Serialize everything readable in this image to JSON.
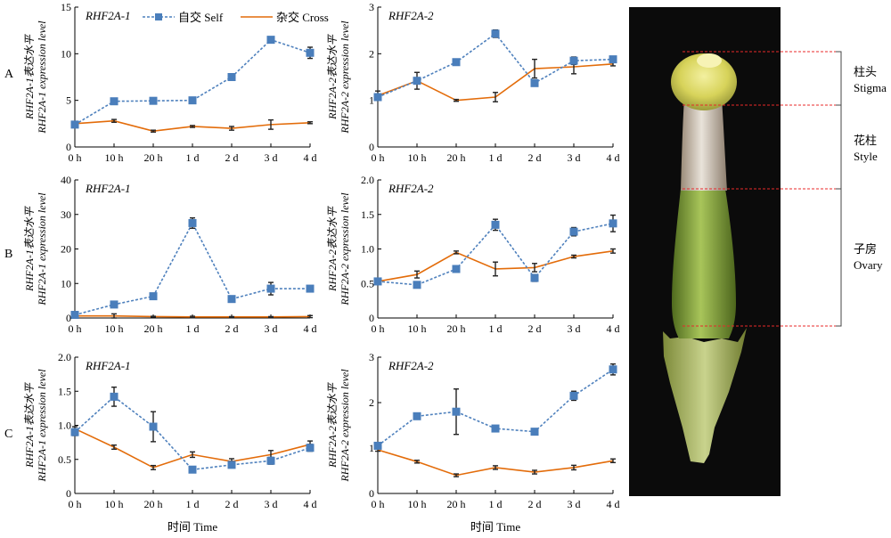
{
  "rows": [
    "A",
    "B",
    "C"
  ],
  "legend": {
    "self": "自交 Self",
    "cross": "杂交 Cross"
  },
  "xlabel": "时间 Time",
  "colors": {
    "self": "#4f81bd",
    "cross": "#e36c0a",
    "self_marker": "#4a7ebb"
  },
  "chart_data": [
    {
      "type": "line",
      "row": "A",
      "title": "RHF2A-1",
      "ylabel": [
        "RHF2A-1表达水平",
        "RHF2A-1 expression level"
      ],
      "categories": [
        "0 h",
        "10 h",
        "20 h",
        "1 d",
        "2 d",
        "3 d",
        "4 d"
      ],
      "ylim": [
        0,
        15
      ],
      "yticks": [
        0,
        5,
        10,
        15
      ],
      "yticklabels": [
        "0",
        "5",
        "10",
        "15"
      ],
      "series": [
        {
          "key": "self",
          "name": "自交 Self",
          "values": [
            2.4,
            4.9,
            4.95,
            5.0,
            7.5,
            11.5,
            10.1
          ],
          "err": [
            0.2,
            0.2,
            0.1,
            0.1,
            0.15,
            0.25,
            0.6
          ]
        },
        {
          "key": "cross",
          "name": "杂交 Cross",
          "values": [
            2.5,
            2.8,
            1.7,
            2.2,
            2.0,
            2.4,
            2.6
          ],
          "err": [
            0.1,
            0.15,
            0.1,
            0.1,
            0.2,
            0.5,
            0.1
          ]
        }
      ]
    },
    {
      "type": "line",
      "row": "A",
      "title": "RHF2A-2",
      "ylabel": [
        "RHF2A-2表达水平",
        "RHF2A-2 expression level"
      ],
      "categories": [
        "0 h",
        "10 h",
        "20 h",
        "1 d",
        "2 d",
        "3 d",
        "4 d"
      ],
      "ylim": [
        0,
        3
      ],
      "yticks": [
        0,
        1,
        2,
        3
      ],
      "yticklabels": [
        "0",
        "1",
        "2",
        "3"
      ],
      "series": [
        {
          "key": "self",
          "name": "自交 Self",
          "values": [
            1.07,
            1.42,
            1.82,
            2.43,
            1.37,
            1.85,
            1.88
          ],
          "err": [
            0.05,
            0.05,
            0.04,
            0.08,
            0.06,
            0.08,
            0.05
          ]
        },
        {
          "key": "cross",
          "name": "杂交 Cross",
          "values": [
            1.1,
            1.42,
            1.0,
            1.07,
            1.68,
            1.72,
            1.78
          ],
          "err": [
            0.1,
            0.18,
            0.02,
            0.1,
            0.2,
            0.15,
            0.04
          ]
        }
      ]
    },
    {
      "type": "line",
      "row": "B",
      "title": "RHF2A-1",
      "ylabel": [
        "RHF2A-1表达水平",
        "RHF2A-1 expression level"
      ],
      "categories": [
        "0 h",
        "10 h",
        "20 h",
        "1 d",
        "2 d",
        "3 d",
        "4 d"
      ],
      "ylim": [
        0,
        40
      ],
      "yticks": [
        0,
        10,
        20,
        30,
        40
      ],
      "yticklabels": [
        "0",
        "10",
        "20",
        "30",
        "40"
      ],
      "series": [
        {
          "key": "self",
          "name": "自交 Self",
          "values": [
            0.9,
            3.9,
            6.3,
            27.5,
            5.5,
            8.5,
            8.5
          ],
          "err": [
            0.2,
            0.3,
            0.4,
            1.5,
            0.4,
            1.8,
            0.3
          ]
        },
        {
          "key": "cross",
          "name": "杂交 Cross",
          "values": [
            0.6,
            0.6,
            0.4,
            0.3,
            0.3,
            0.3,
            0.4
          ],
          "err": [
            0.1,
            0.6,
            0.1,
            0.2,
            0.1,
            0.1,
            0.3
          ]
        }
      ]
    },
    {
      "type": "line",
      "row": "B",
      "title": "RHF2A-2",
      "ylabel": [
        "RHF2A-2表达水平",
        "RHF2A-2 expression level"
      ],
      "categories": [
        "0 h",
        "10 h",
        "20 h",
        "1 d",
        "2 d",
        "3 d",
        "4 d"
      ],
      "ylim": [
        0,
        2.0
      ],
      "yticks": [
        0,
        0.5,
        1.0,
        1.5,
        2.0
      ],
      "yticklabels": [
        "0",
        "0.5",
        "1.0",
        "1.5",
        "2.0"
      ],
      "series": [
        {
          "key": "self",
          "name": "自交 Self",
          "values": [
            0.53,
            0.48,
            0.71,
            1.35,
            0.58,
            1.25,
            1.37
          ],
          "err": [
            0.03,
            0.03,
            0.03,
            0.08,
            0.05,
            0.06,
            0.12
          ]
        },
        {
          "key": "cross",
          "name": "杂交 Cross",
          "values": [
            0.53,
            0.63,
            0.95,
            0.71,
            0.73,
            0.89,
            0.97
          ],
          "err": [
            0.03,
            0.05,
            0.02,
            0.1,
            0.06,
            0.02,
            0.03
          ]
        }
      ]
    },
    {
      "type": "line",
      "row": "C",
      "title": "RHF2A-1",
      "ylabel": [
        "RHF2A-1表达水平",
        "RHF2A-1 expression level"
      ],
      "categories": [
        "0 h",
        "10 h",
        "20 h",
        "1 d",
        "2 d",
        "3 d",
        "4 d"
      ],
      "ylim": [
        0,
        2.0
      ],
      "yticks": [
        0,
        0.5,
        1.0,
        1.5,
        2.0
      ],
      "yticklabels": [
        "0",
        "0.5",
        "1.0",
        "1.5",
        "2.0"
      ],
      "series": [
        {
          "key": "self",
          "name": "自交 Self",
          "values": [
            0.9,
            1.42,
            0.98,
            0.35,
            0.42,
            0.48,
            0.67
          ],
          "err": [
            0.05,
            0.14,
            0.22,
            0.02,
            0.03,
            0.05,
            0.05
          ]
        },
        {
          "key": "cross",
          "name": "杂交 Cross",
          "values": [
            0.95,
            0.68,
            0.38,
            0.57,
            0.47,
            0.57,
            0.72
          ],
          "err": [
            0.03,
            0.03,
            0.03,
            0.04,
            0.04,
            0.06,
            0.05
          ]
        }
      ]
    },
    {
      "type": "line",
      "row": "C",
      "title": "RHF2A-2",
      "ylabel": [
        "RHF2A-2表达水平",
        "RHF2A-2 expression level"
      ],
      "categories": [
        "0 h",
        "10 h",
        "20 h",
        "1 d",
        "2 d",
        "3 d",
        "4 d"
      ],
      "ylim": [
        0,
        3
      ],
      "yticks": [
        0,
        1,
        2,
        3
      ],
      "yticklabels": [
        "0",
        "1",
        "2",
        "3"
      ],
      "series": [
        {
          "key": "self",
          "name": "自交 Self",
          "values": [
            1.05,
            1.7,
            1.8,
            1.43,
            1.36,
            2.15,
            2.73
          ],
          "err": [
            0.05,
            0.04,
            0.5,
            0.05,
            0.04,
            0.1,
            0.12
          ]
        },
        {
          "key": "cross",
          "name": "杂交 Cross",
          "values": [
            0.96,
            0.7,
            0.4,
            0.57,
            0.47,
            0.57,
            0.72
          ],
          "err": [
            0.03,
            0.03,
            0.03,
            0.04,
            0.04,
            0.05,
            0.04
          ]
        }
      ]
    }
  ],
  "pistil": {
    "labels": [
      {
        "zh": "柱头",
        "en": "Stigma"
      },
      {
        "zh": "花柱",
        "en": "Style"
      },
      {
        "zh": "子房",
        "en": "Ovary"
      }
    ]
  }
}
